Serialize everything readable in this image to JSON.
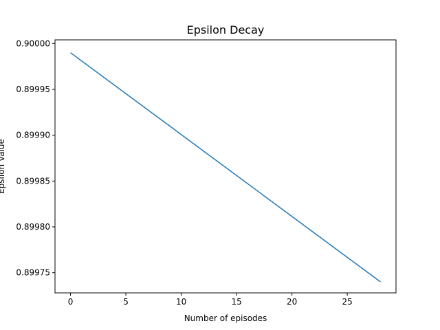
{
  "chart_data": {
    "type": "line",
    "title": "Epsilon Decay",
    "xlabel": "Number of episodes",
    "ylabel": "Epsilon Value",
    "xlim": [
      -1.4,
      29.4
    ],
    "ylim": [
      0.899728,
      0.900004
    ],
    "x_ticks": [
      0,
      5,
      10,
      15,
      20,
      25
    ],
    "x_tick_labels": [
      "0",
      "5",
      "10",
      "15",
      "20",
      "25"
    ],
    "y_ticks": [
      0.89975,
      0.8998,
      0.89985,
      0.8999,
      0.89995,
      0.9
    ],
    "y_tick_labels": [
      "0.89975",
      "0.89980",
      "0.89985",
      "0.89990",
      "0.89995",
      "0.90000"
    ],
    "grid": false,
    "series": [
      {
        "color": "#1f77b4",
        "x": [
          0,
          28
        ],
        "y": [
          0.89999,
          0.89974
        ]
      }
    ]
  }
}
